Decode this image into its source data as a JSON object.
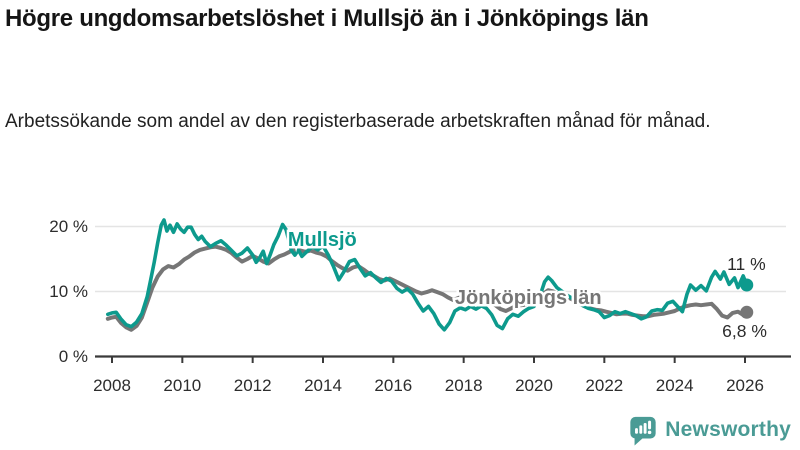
{
  "header": {
    "title": "Högre ungdomsarbetslöshet i Mullsjö än i Jönköpings län",
    "subtitle": "Arbetssökande som andel av den registerbaserade arbetskraften månad för månad."
  },
  "chart_data": {
    "type": "line",
    "title": "Högre ungdomsarbetslöshet i Mullsjö än i Jönköpings län",
    "subtitle": "Arbetssökande som andel av den registerbaserade arbetskraften månad för månad.",
    "xlabel": "",
    "ylabel": "",
    "x_range": [
      2007.85,
      2026.4
    ],
    "y_range": [
      0,
      22.5
    ],
    "grid": "horizontal",
    "legend_position": "inline-labels",
    "x_ticks": [
      2008,
      2010,
      2012,
      2014,
      2016,
      2018,
      2020,
      2022,
      2024,
      2026
    ],
    "y_ticks": [
      {
        "value": 0,
        "label": "0 %"
      },
      {
        "value": 10,
        "label": "10 %"
      },
      {
        "value": 20,
        "label": "20 %"
      }
    ],
    "style": {
      "axis_color": "#3a3a3a",
      "grid_color": "#e4e4e4",
      "tick_label_color": "#2d2d2d",
      "annotation_color": "#2c2c2c",
      "label_halo_color": "#ffffff"
    },
    "series": [
      {
        "id": "mullsjo",
        "name": "Mullsjö",
        "color": "#0d9a8d",
        "line_width": 3.6,
        "label_anchor": {
          "x": 2013.0,
          "y": 17.9
        },
        "end_value_label": "11 %",
        "end_label_anchor": {
          "x": 2025.49,
          "y": 13.3
        },
        "points": [
          [
            2007.88,
            6.5
          ],
          [
            2008.0,
            6.7
          ],
          [
            2008.12,
            6.8
          ],
          [
            2008.25,
            5.8
          ],
          [
            2008.4,
            4.9
          ],
          [
            2008.55,
            4.6
          ],
          [
            2008.7,
            5.3
          ],
          [
            2008.85,
            6.6
          ],
          [
            2009.0,
            9.2
          ],
          [
            2009.1,
            11.8
          ],
          [
            2009.2,
            14.5
          ],
          [
            2009.3,
            17.5
          ],
          [
            2009.4,
            20.2
          ],
          [
            2009.48,
            21.0
          ],
          [
            2009.56,
            19.3
          ],
          [
            2009.65,
            20.2
          ],
          [
            2009.75,
            19.1
          ],
          [
            2009.85,
            20.4
          ],
          [
            2009.95,
            19.6
          ],
          [
            2010.05,
            19.1
          ],
          [
            2010.15,
            19.9
          ],
          [
            2010.25,
            19.9
          ],
          [
            2010.35,
            18.8
          ],
          [
            2010.45,
            18.0
          ],
          [
            2010.55,
            18.5
          ],
          [
            2010.65,
            17.7
          ],
          [
            2010.8,
            16.9
          ],
          [
            2010.95,
            17.4
          ],
          [
            2011.1,
            17.8
          ],
          [
            2011.25,
            17.1
          ],
          [
            2011.4,
            16.3
          ],
          [
            2011.55,
            15.5
          ],
          [
            2011.7,
            15.9
          ],
          [
            2011.85,
            16.7
          ],
          [
            2012.0,
            15.6
          ],
          [
            2012.1,
            14.5
          ],
          [
            2012.2,
            15.2
          ],
          [
            2012.3,
            16.2
          ],
          [
            2012.4,
            14.3
          ],
          [
            2012.5,
            15.7
          ],
          [
            2012.6,
            17.2
          ],
          [
            2012.72,
            18.5
          ],
          [
            2012.85,
            20.3
          ],
          [
            2012.95,
            19.5
          ],
          [
            2013.1,
            16.3
          ],
          [
            2013.2,
            15.6
          ],
          [
            2013.3,
            16.4
          ],
          [
            2013.4,
            15.4
          ],
          [
            2013.55,
            16.2
          ],
          [
            2013.7,
            16.9
          ],
          [
            2013.85,
            16.4
          ],
          [
            2014.0,
            17.0
          ],
          [
            2014.15,
            15.6
          ],
          [
            2014.3,
            13.8
          ],
          [
            2014.45,
            11.8
          ],
          [
            2014.6,
            13.1
          ],
          [
            2014.75,
            14.6
          ],
          [
            2014.9,
            14.9
          ],
          [
            2015.05,
            13.6
          ],
          [
            2015.2,
            12.4
          ],
          [
            2015.35,
            12.9
          ],
          [
            2015.5,
            12.1
          ],
          [
            2015.65,
            11.4
          ],
          [
            2015.8,
            12.0
          ],
          [
            2015.95,
            11.6
          ],
          [
            2016.1,
            10.5
          ],
          [
            2016.25,
            9.9
          ],
          [
            2016.4,
            10.4
          ],
          [
            2016.55,
            9.6
          ],
          [
            2016.7,
            8.2
          ],
          [
            2016.85,
            7.0
          ],
          [
            2017.0,
            7.7
          ],
          [
            2017.15,
            6.6
          ],
          [
            2017.3,
            5.0
          ],
          [
            2017.45,
            4.1
          ],
          [
            2017.6,
            5.2
          ],
          [
            2017.75,
            7.0
          ],
          [
            2017.9,
            7.5
          ],
          [
            2018.05,
            7.2
          ],
          [
            2018.2,
            7.7
          ],
          [
            2018.35,
            7.3
          ],
          [
            2018.5,
            7.8
          ],
          [
            2018.65,
            7.4
          ],
          [
            2018.8,
            6.4
          ],
          [
            2018.95,
            4.8
          ],
          [
            2019.1,
            4.3
          ],
          [
            2019.25,
            5.8
          ],
          [
            2019.4,
            6.5
          ],
          [
            2019.55,
            6.2
          ],
          [
            2019.7,
            6.9
          ],
          [
            2019.85,
            7.4
          ],
          [
            2020.0,
            7.7
          ],
          [
            2020.15,
            9.0
          ],
          [
            2020.3,
            11.5
          ],
          [
            2020.4,
            12.2
          ],
          [
            2020.5,
            11.7
          ],
          [
            2020.65,
            10.6
          ],
          [
            2020.8,
            10.0
          ],
          [
            2020.95,
            9.4
          ],
          [
            2021.1,
            8.9
          ],
          [
            2021.25,
            8.2
          ],
          [
            2021.4,
            7.8
          ],
          [
            2021.55,
            7.4
          ],
          [
            2021.7,
            7.2
          ],
          [
            2021.85,
            6.9
          ],
          [
            2022.0,
            6.0
          ],
          [
            2022.15,
            6.3
          ],
          [
            2022.3,
            6.9
          ],
          [
            2022.45,
            6.6
          ],
          [
            2022.6,
            6.9
          ],
          [
            2022.75,
            6.6
          ],
          [
            2022.9,
            6.3
          ],
          [
            2023.05,
            5.8
          ],
          [
            2023.2,
            6.1
          ],
          [
            2023.35,
            7.0
          ],
          [
            2023.5,
            7.2
          ],
          [
            2023.65,
            7.1
          ],
          [
            2023.8,
            8.2
          ],
          [
            2023.95,
            8.5
          ],
          [
            2024.1,
            7.6
          ],
          [
            2024.22,
            6.9
          ],
          [
            2024.35,
            9.6
          ],
          [
            2024.45,
            11.0
          ],
          [
            2024.6,
            10.2
          ],
          [
            2024.75,
            10.9
          ],
          [
            2024.9,
            10.1
          ],
          [
            2025.05,
            12.2
          ],
          [
            2025.15,
            13.1
          ],
          [
            2025.3,
            11.9
          ],
          [
            2025.4,
            13.0
          ],
          [
            2025.55,
            11.1
          ],
          [
            2025.7,
            12.1
          ],
          [
            2025.8,
            10.6
          ],
          [
            2025.95,
            12.4
          ],
          [
            2026.05,
            11.0
          ]
        ]
      },
      {
        "id": "jonkopings-lan",
        "name": "Jönköpings län",
        "color": "#767676",
        "line_width": 4,
        "label_anchor": {
          "x": 2017.75,
          "y": 9.0
        },
        "end_value_label": "6,8 %",
        "end_label_anchor": {
          "x": 2025.35,
          "y": 3.0
        },
        "points": [
          [
            2007.88,
            5.8
          ],
          [
            2008.0,
            6.0
          ],
          [
            2008.12,
            6.1
          ],
          [
            2008.25,
            5.2
          ],
          [
            2008.4,
            4.5
          ],
          [
            2008.55,
            4.1
          ],
          [
            2008.7,
            4.7
          ],
          [
            2008.85,
            6.0
          ],
          [
            2009.0,
            8.3
          ],
          [
            2009.15,
            10.6
          ],
          [
            2009.3,
            12.3
          ],
          [
            2009.45,
            13.4
          ],
          [
            2009.6,
            13.9
          ],
          [
            2009.75,
            13.7
          ],
          [
            2009.9,
            14.2
          ],
          [
            2010.05,
            14.9
          ],
          [
            2010.2,
            15.4
          ],
          [
            2010.35,
            16.0
          ],
          [
            2010.5,
            16.4
          ],
          [
            2010.65,
            16.6
          ],
          [
            2010.8,
            16.8
          ],
          [
            2010.95,
            16.9
          ],
          [
            2011.1,
            16.7
          ],
          [
            2011.25,
            16.4
          ],
          [
            2011.4,
            15.9
          ],
          [
            2011.55,
            15.2
          ],
          [
            2011.7,
            14.6
          ],
          [
            2011.85,
            15.0
          ],
          [
            2012.0,
            15.5
          ],
          [
            2012.15,
            15.1
          ],
          [
            2012.3,
            14.6
          ],
          [
            2012.45,
            14.3
          ],
          [
            2012.6,
            14.9
          ],
          [
            2012.75,
            15.4
          ],
          [
            2012.9,
            15.7
          ],
          [
            2013.05,
            16.1
          ],
          [
            2013.2,
            16.4
          ],
          [
            2013.35,
            16.3
          ],
          [
            2013.5,
            16.1
          ],
          [
            2013.65,
            16.3
          ],
          [
            2013.8,
            16.0
          ],
          [
            2013.95,
            15.8
          ],
          [
            2014.1,
            15.4
          ],
          [
            2014.25,
            14.7
          ],
          [
            2014.4,
            14.1
          ],
          [
            2014.55,
            13.6
          ],
          [
            2014.7,
            13.2
          ],
          [
            2014.85,
            13.7
          ],
          [
            2015.0,
            13.9
          ],
          [
            2015.15,
            13.4
          ],
          [
            2015.3,
            12.8
          ],
          [
            2015.45,
            12.4
          ],
          [
            2015.6,
            11.9
          ],
          [
            2015.75,
            11.7
          ],
          [
            2015.9,
            12.0
          ],
          [
            2016.05,
            11.6
          ],
          [
            2016.2,
            11.2
          ],
          [
            2016.35,
            10.8
          ],
          [
            2016.5,
            10.4
          ],
          [
            2016.65,
            10.0
          ],
          [
            2016.8,
            9.7
          ],
          [
            2016.95,
            9.9
          ],
          [
            2017.1,
            10.2
          ],
          [
            2017.25,
            9.9
          ],
          [
            2017.4,
            9.6
          ],
          [
            2017.55,
            9.1
          ],
          [
            2017.7,
            8.7
          ],
          [
            2017.85,
            9.0
          ],
          [
            2018.0,
            9.3
          ],
          [
            2018.15,
            9.0
          ],
          [
            2018.3,
            8.7
          ],
          [
            2018.45,
            8.9
          ],
          [
            2018.6,
            8.6
          ],
          [
            2018.75,
            8.3
          ],
          [
            2018.9,
            7.9
          ],
          [
            2019.05,
            7.3
          ],
          [
            2019.2,
            7.0
          ],
          [
            2019.35,
            7.4
          ],
          [
            2019.5,
            7.8
          ],
          [
            2019.65,
            7.9
          ],
          [
            2019.8,
            8.0
          ],
          [
            2019.95,
            8.2
          ],
          [
            2020.1,
            8.8
          ],
          [
            2020.25,
            9.6
          ],
          [
            2020.4,
            10.2
          ],
          [
            2020.55,
            10.0
          ],
          [
            2020.7,
            9.7
          ],
          [
            2020.85,
            9.3
          ],
          [
            2021.0,
            9.0
          ],
          [
            2021.15,
            8.6
          ],
          [
            2021.3,
            8.1
          ],
          [
            2021.45,
            7.7
          ],
          [
            2021.6,
            7.4
          ],
          [
            2021.75,
            7.2
          ],
          [
            2021.9,
            7.1
          ],
          [
            2022.05,
            6.9
          ],
          [
            2022.2,
            6.7
          ],
          [
            2022.35,
            6.5
          ],
          [
            2022.5,
            6.6
          ],
          [
            2022.65,
            6.6
          ],
          [
            2022.8,
            6.4
          ],
          [
            2022.95,
            6.3
          ],
          [
            2023.1,
            6.2
          ],
          [
            2023.25,
            6.2
          ],
          [
            2023.4,
            6.4
          ],
          [
            2023.55,
            6.5
          ],
          [
            2023.7,
            6.6
          ],
          [
            2023.85,
            6.8
          ],
          [
            2024.0,
            7.0
          ],
          [
            2024.15,
            7.4
          ],
          [
            2024.3,
            7.7
          ],
          [
            2024.45,
            7.9
          ],
          [
            2024.6,
            8.0
          ],
          [
            2024.75,
            7.9
          ],
          [
            2024.9,
            8.0
          ],
          [
            2025.05,
            8.1
          ],
          [
            2025.2,
            7.3
          ],
          [
            2025.35,
            6.3
          ],
          [
            2025.5,
            6.0
          ],
          [
            2025.65,
            6.7
          ],
          [
            2025.8,
            6.9
          ],
          [
            2025.95,
            6.4
          ],
          [
            2026.05,
            6.8
          ]
        ]
      }
    ]
  },
  "footer": {
    "brand": "Newsworthy",
    "brand_color": "#4a9b95",
    "logo_icon": "bar-chart-speech-bubble-icon"
  },
  "colors": {
    "accent_teal": "#0d9a8d",
    "series_gray": "#767676",
    "title_text": "#151515",
    "body_text": "#222222",
    "background": "#ffffff"
  }
}
